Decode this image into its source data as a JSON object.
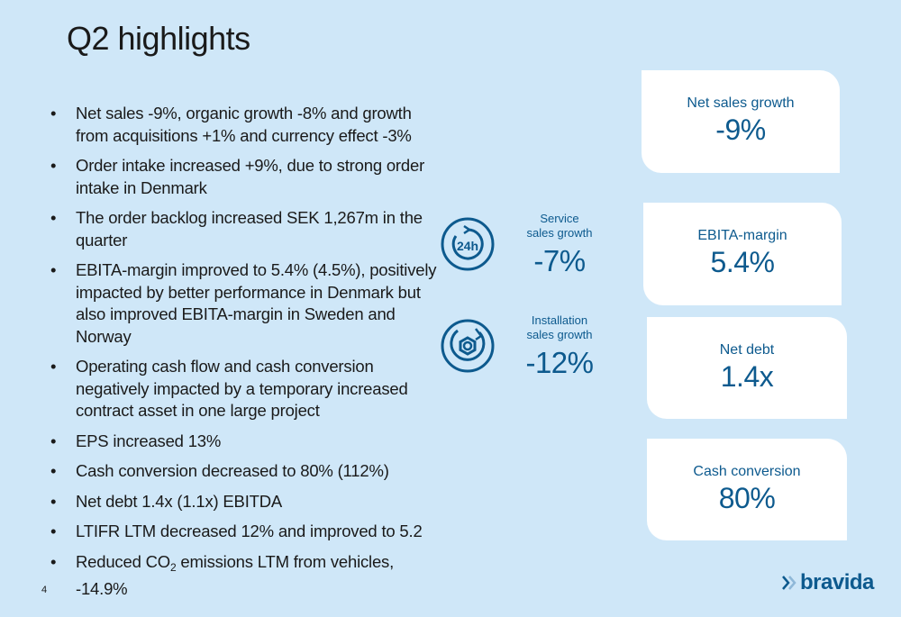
{
  "title": "Q2 highlights",
  "bullets": [
    "Net sales -9%, organic growth -8% and growth from acquisitions +1% and currency effect -3%",
    "Order intake increased +9%, due to strong order intake in Denmark",
    "The order backlog increased SEK 1,267m in the quarter",
    "EBITA-margin improved to 5.4% (4.5%), positively impacted by better performance in Denmark but also improved EBITA-margin in Sweden and Norway",
    "Operating cash flow and cash conversion negatively impacted by a temporary increased contract asset in one large project",
    "EPS increased 13%",
    "Cash conversion decreased to 80% (112%)",
    "Net debt 1.4x (1.1x) EBITDA",
    "LTIFR LTM decreased 12% and improved to 5.2"
  ],
  "last_bullet": {
    "before": "Reduced CO",
    "sub": "2",
    "after": " emissions LTM from vehicles, -14.9%"
  },
  "service": {
    "label_line1": "Service",
    "label_line2": "sales growth",
    "value": "-7%",
    "icon": "24h-clock-icon"
  },
  "installation": {
    "label_line1": "Installation",
    "label_line2": "sales growth",
    "value": "-12%",
    "icon": "wrench-nut-icon"
  },
  "cards": [
    {
      "label": "Net sales growth",
      "value": "-9%"
    },
    {
      "label": "EBITA-margin",
      "value": "5.4%"
    },
    {
      "label": "Net debt",
      "value": "1.4x"
    },
    {
      "label": "Cash conversion",
      "value": "80%"
    }
  ],
  "page_number": "4",
  "logo_text": "bravida",
  "colors": {
    "background": "#cfe7f8",
    "accent": "#0d5a8e",
    "card": "#ffffff"
  }
}
